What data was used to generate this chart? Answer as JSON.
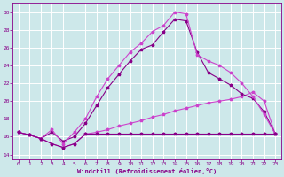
{
  "xlabel": "Windchill (Refroidissement éolien,°C)",
  "ylabel": "",
  "background_color": "#cde8ea",
  "grid_color": "#ffffff",
  "xlim": [
    -0.5,
    23.5
  ],
  "ylim": [
    13.5,
    31.0
  ],
  "yticks": [
    14,
    16,
    18,
    20,
    22,
    24,
    26,
    28,
    30
  ],
  "xticks": [
    0,
    1,
    2,
    3,
    4,
    5,
    6,
    7,
    8,
    9,
    10,
    11,
    12,
    13,
    14,
    15,
    16,
    17,
    18,
    19,
    20,
    21,
    22,
    23
  ],
  "line_color_dark": "#880088",
  "line_color_bright": "#cc44cc",
  "series_flat": {
    "x": [
      0,
      1,
      2,
      3,
      4,
      5,
      6,
      7,
      8,
      9,
      10,
      11,
      12,
      13,
      14,
      15,
      16,
      17,
      18,
      19,
      20,
      21,
      22,
      23
    ],
    "y": [
      16.5,
      16.2,
      15.8,
      15.2,
      14.8,
      15.2,
      16.3,
      16.3,
      16.3,
      16.3,
      16.3,
      16.3,
      16.3,
      16.3,
      16.3,
      16.3,
      16.3,
      16.3,
      16.3,
      16.3,
      16.3,
      16.3,
      16.3,
      16.3
    ]
  },
  "series_low": {
    "x": [
      0,
      1,
      2,
      3,
      4,
      5,
      6,
      7,
      8,
      9,
      10,
      11,
      12,
      13,
      14,
      15,
      16,
      17,
      18,
      19,
      20,
      21,
      22,
      23
    ],
    "y": [
      16.5,
      16.2,
      15.8,
      15.2,
      14.8,
      15.2,
      16.3,
      16.5,
      16.8,
      17.2,
      17.5,
      17.8,
      18.2,
      18.5,
      18.9,
      19.2,
      19.5,
      19.8,
      20.0,
      20.2,
      20.5,
      21.0,
      20.0,
      16.3
    ]
  },
  "series_mid": {
    "x": [
      0,
      1,
      2,
      3,
      4,
      5,
      6,
      7,
      8,
      9,
      10,
      11,
      12,
      13,
      14,
      15,
      16,
      17,
      18,
      19,
      20,
      21,
      22,
      23
    ],
    "y": [
      16.5,
      16.2,
      15.8,
      16.5,
      15.5,
      16.0,
      17.5,
      19.5,
      21.5,
      23.0,
      24.5,
      25.8,
      26.3,
      27.8,
      29.2,
      29.0,
      25.5,
      23.2,
      22.5,
      21.8,
      20.8,
      20.3,
      18.8,
      16.3
    ]
  },
  "series_high": {
    "x": [
      0,
      1,
      2,
      3,
      4,
      5,
      6,
      7,
      8,
      9,
      10,
      11,
      12,
      13,
      14,
      15,
      16,
      17,
      18,
      19,
      20,
      21,
      22,
      23
    ],
    "y": [
      16.5,
      16.2,
      15.8,
      16.8,
      15.2,
      16.5,
      18.0,
      20.5,
      22.5,
      24.0,
      25.5,
      26.5,
      27.8,
      28.5,
      30.0,
      29.8,
      25.2,
      24.5,
      24.0,
      23.2,
      22.0,
      20.5,
      18.5,
      16.3
    ]
  }
}
